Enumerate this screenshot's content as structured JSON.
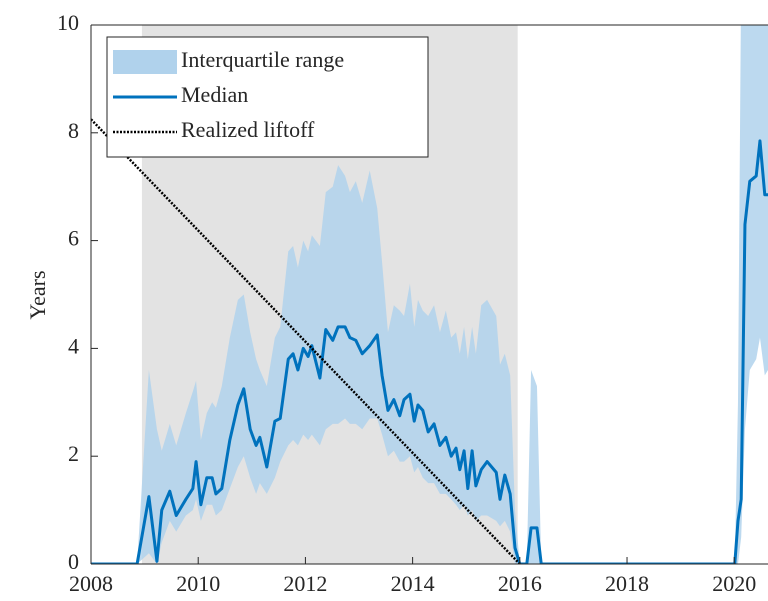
{
  "chart_data": {
    "type": "line",
    "y_label": "Years",
    "xlim": [
      2008,
      2020.63
    ],
    "ylim": [
      0,
      10
    ],
    "xticks": [
      2008,
      2010,
      2012,
      2014,
      2016,
      2018,
      2020
    ],
    "yticks": [
      0,
      2,
      4,
      6,
      8,
      10
    ],
    "shaded_xrange": [
      2008.95,
      2015.96
    ],
    "shade_color": "#e3e3e3",
    "legend": "upper left",
    "x": [
      2008.0,
      2008.86,
      2009.08,
      2009.23,
      2009.32,
      2009.47,
      2009.59,
      2009.77,
      2009.9,
      2009.96,
      2010.05,
      2010.16,
      2010.26,
      2010.33,
      2010.44,
      2010.59,
      2010.74,
      2010.85,
      2010.97,
      2011.08,
      2011.15,
      2011.28,
      2011.43,
      2011.53,
      2011.68,
      2011.77,
      2011.86,
      2011.96,
      2012.05,
      2012.12,
      2012.27,
      2012.38,
      2012.51,
      2012.61,
      2012.74,
      2012.83,
      2012.94,
      2013.06,
      2013.2,
      2013.34,
      2013.43,
      2013.54,
      2013.65,
      2013.76,
      2013.84,
      2013.95,
      2014.03,
      2014.1,
      2014.19,
      2014.29,
      2014.4,
      2014.51,
      2014.62,
      2014.72,
      2014.81,
      2014.88,
      2014.96,
      2015.03,
      2015.11,
      2015.18,
      2015.28,
      2015.39,
      2015.56,
      2015.63,
      2015.72,
      2015.82,
      2015.91,
      2016.0,
      2016.13,
      2016.21,
      2016.32,
      2016.4,
      2020.01,
      2020.07,
      2020.13,
      2020.2,
      2020.29,
      2020.41,
      2020.48,
      2020.57,
      2020.63
    ],
    "series": [
      {
        "name": "Interquartile range",
        "color": "#b0d2ec",
        "upper": [
          0,
          0,
          3.6,
          2.5,
          2.1,
          2.6,
          2.2,
          2.8,
          3.2,
          3.4,
          2.3,
          2.8,
          3.0,
          2.9,
          3.3,
          4.2,
          4.9,
          5.0,
          4.3,
          3.8,
          3.6,
          3.3,
          4.2,
          4.4,
          5.8,
          5.9,
          5.5,
          6.0,
          5.8,
          6.1,
          5.9,
          6.9,
          7.0,
          7.4,
          7.2,
          6.9,
          7.1,
          6.7,
          7.3,
          6.6,
          5.6,
          4.3,
          4.8,
          4.7,
          4.6,
          5.2,
          4.4,
          4.9,
          4.7,
          4.6,
          4.8,
          4.3,
          4.7,
          4.2,
          4.3,
          3.9,
          4.4,
          3.8,
          4.4,
          3.9,
          4.8,
          4.9,
          4.6,
          3.7,
          3.9,
          3.5,
          1.0,
          0,
          0,
          3.6,
          3.3,
          0,
          0,
          3.0,
          11,
          11,
          11,
          11,
          11,
          11,
          11
        ],
        "lower": [
          0,
          0,
          0.2,
          0,
          0.4,
          0.8,
          0.6,
          0.9,
          1.0,
          1.2,
          0.8,
          1.1,
          1.1,
          0.9,
          1.0,
          1.4,
          1.8,
          2.0,
          1.6,
          1.3,
          1.5,
          1.3,
          1.6,
          1.9,
          2.2,
          2.3,
          2.2,
          2.4,
          2.3,
          2.4,
          2.2,
          2.5,
          2.6,
          2.6,
          2.7,
          2.6,
          2.6,
          2.5,
          2.7,
          2.7,
          2.4,
          2.0,
          2.1,
          1.9,
          1.9,
          2.0,
          1.7,
          1.8,
          1.6,
          1.5,
          1.5,
          1.3,
          1.3,
          1.2,
          1.1,
          1.0,
          1.1,
          0.9,
          1.0,
          0.8,
          0.9,
          0.9,
          0.8,
          0.7,
          0.8,
          0.6,
          0,
          0,
          0,
          0,
          0,
          0,
          0,
          0,
          0.5,
          2.5,
          3.6,
          3.8,
          4.2,
          3.5,
          3.6
        ]
      },
      {
        "name": "Median",
        "color": "#0072bd",
        "values": [
          0,
          0,
          1.25,
          0.05,
          1.0,
          1.35,
          0.9,
          1.2,
          1.4,
          1.9,
          1.1,
          1.6,
          1.6,
          1.3,
          1.4,
          2.3,
          2.95,
          3.25,
          2.5,
          2.2,
          2.35,
          1.8,
          2.65,
          2.7,
          3.8,
          3.9,
          3.6,
          4.0,
          3.85,
          4.05,
          3.45,
          4.35,
          4.15,
          4.4,
          4.4,
          4.2,
          4.15,
          3.9,
          4.05,
          4.25,
          3.5,
          2.85,
          3.05,
          2.75,
          3.05,
          3.15,
          2.65,
          2.95,
          2.85,
          2.45,
          2.6,
          2.2,
          2.35,
          2.0,
          2.15,
          1.75,
          2.1,
          1.4,
          2.1,
          1.45,
          1.75,
          1.9,
          1.7,
          1.2,
          1.65,
          1.3,
          0.3,
          0,
          0,
          0.67,
          0.67,
          0,
          0,
          0.8,
          1.2,
          6.3,
          7.1,
          7.2,
          7.85,
          6.85,
          6.85
        ]
      },
      {
        "name": "Realized liftoff",
        "color": "#000000",
        "x": [
          2008,
          2016
        ],
        "values": [
          8.25,
          0
        ]
      }
    ]
  }
}
